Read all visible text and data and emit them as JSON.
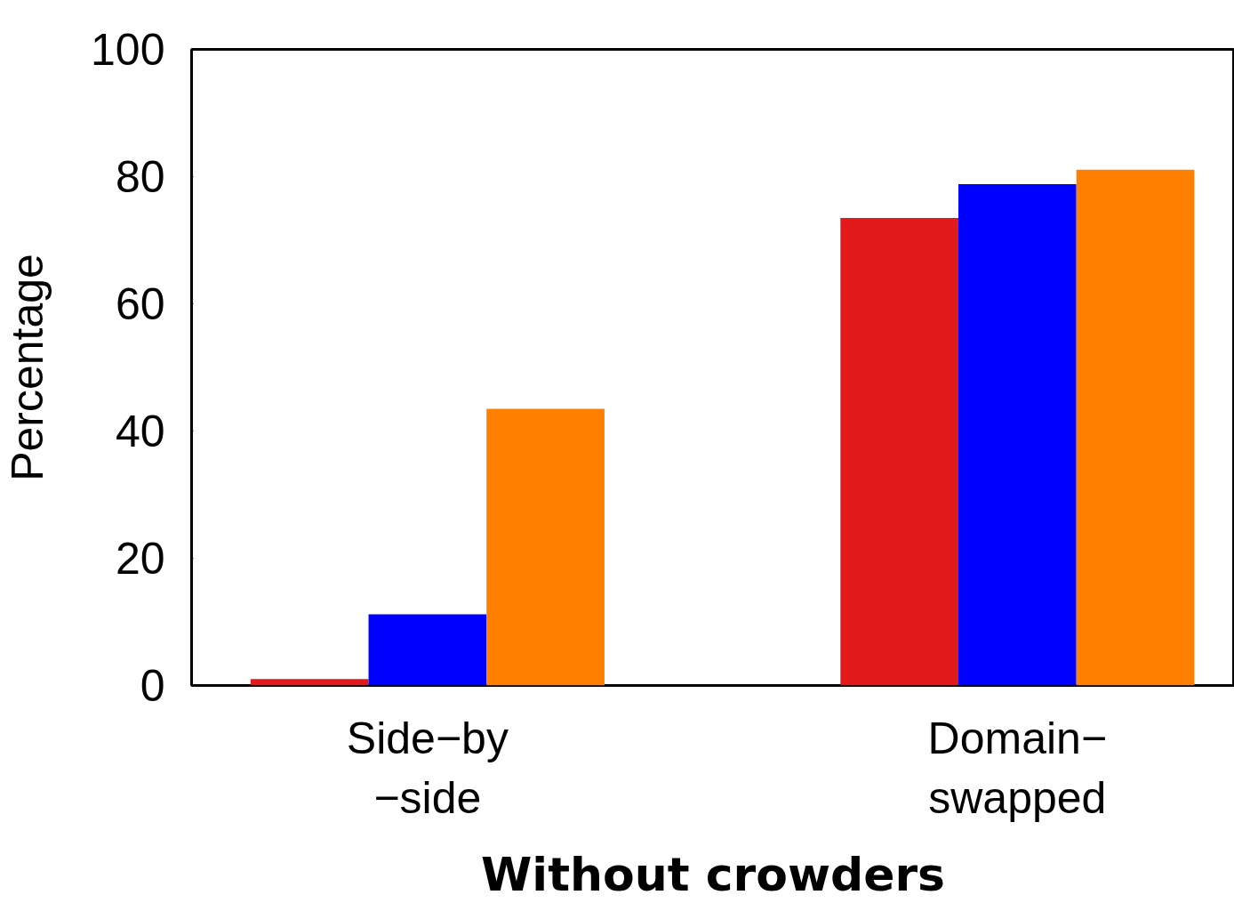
{
  "chart_data": {
    "type": "bar",
    "xlabel": "Without crowders",
    "ylabel": "Percentage",
    "categories": [
      "Side−by\n−side",
      "Domain−\nswapped"
    ],
    "series": [
      {
        "color": "#e31a1c",
        "values": [
          1.0,
          73.5
        ]
      },
      {
        "color": "#0000ff",
        "values": [
          11.2,
          78.8
        ]
      },
      {
        "color": "#ff7f00",
        "values": [
          43.5,
          81.1
        ]
      }
    ],
    "ylim": [
      0,
      100
    ],
    "yticks": [
      0,
      20,
      40,
      60,
      80,
      100
    ],
    "grid": false
  }
}
